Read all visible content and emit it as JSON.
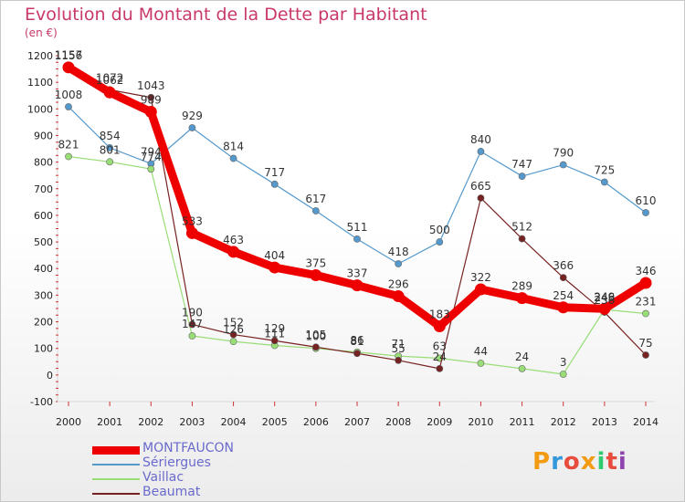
{
  "header": {
    "title": "Evolution du Montant de la Dette par Habitant",
    "subtitle": "(en €)"
  },
  "logo": {
    "text": "Proxiti",
    "colors": [
      "#f39c12",
      "#3498db",
      "#e74c3c",
      "#f39c12",
      "#2ecc71",
      "#e74c3c",
      "#8e44ad"
    ]
  },
  "chart_data": {
    "type": "line",
    "title": "Evolution du Montant de la Dette par Habitant",
    "subtitle": "(en €)",
    "xlabel": "",
    "ylabel": "",
    "x": [
      "2000",
      "2001",
      "2002",
      "2003",
      "2004",
      "2005",
      "2006",
      "2007",
      "2008",
      "2009",
      "2010",
      "2011",
      "2012",
      "2013",
      "2014"
    ],
    "ylim": [
      -100,
      1200
    ],
    "yticks": [
      -100,
      0,
      100,
      200,
      300,
      400,
      500,
      600,
      700,
      800,
      900,
      1000,
      1100,
      1200
    ],
    "grid": false,
    "legend_position": "bottom-left",
    "series": [
      {
        "name": "MONTFAUCON",
        "color": "#ee0000",
        "values": [
          1156,
          1062,
          989,
          533,
          463,
          404,
          375,
          337,
          296,
          183,
          322,
          289,
          254,
          249,
          346
        ]
      },
      {
        "name": "Sériergues",
        "color": "#5599cc",
        "values": [
          1008,
          854,
          794,
          929,
          814,
          717,
          617,
          511,
          418,
          500,
          840,
          747,
          790,
          725,
          610
        ]
      },
      {
        "name": "Vaillac",
        "color": "#99dd77",
        "values": [
          821,
          801,
          774,
          147,
          126,
          111,
          100,
          86,
          71,
          63,
          44,
          24,
          3,
          246,
          231
        ]
      },
      {
        "name": "Beaumat",
        "color": "#772222",
        "values": [
          1157,
          1072,
          1043,
          190,
          152,
          129,
          105,
          81,
          55,
          24,
          665,
          512,
          366,
          236,
          75
        ]
      }
    ]
  }
}
